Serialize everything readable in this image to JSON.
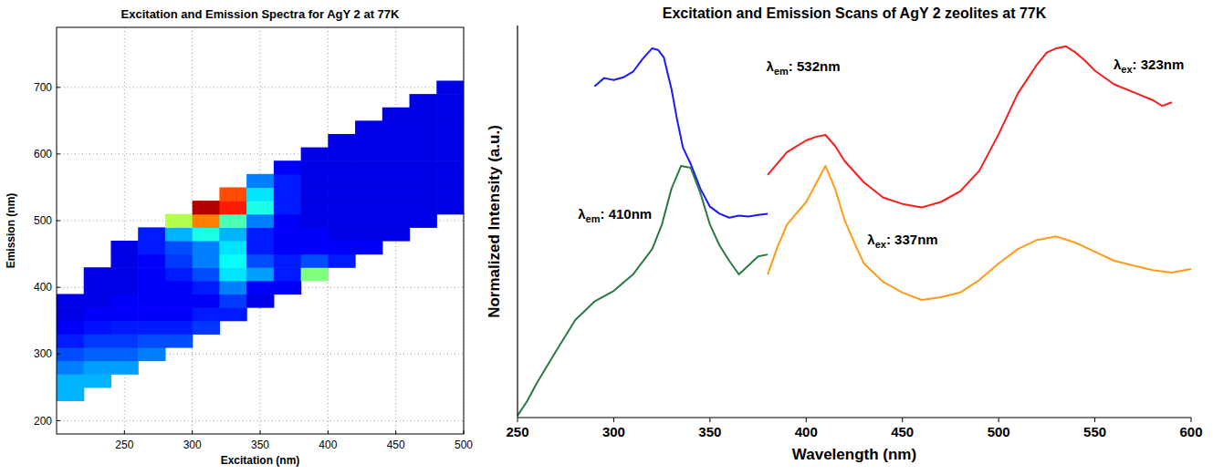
{
  "chart_data": [
    {
      "type": "heatmap",
      "title": "Excitation and Emission Spectra for AgY 2 at 77K",
      "x_label": "Excitation (nm)",
      "y_label": "Emission (nm)",
      "x": [
        210,
        230,
        250,
        270,
        290,
        310,
        330,
        350,
        370,
        390,
        410,
        430,
        450,
        470,
        490
      ],
      "y": [
        240,
        260,
        280,
        300,
        320,
        340,
        360,
        380,
        400,
        420,
        440,
        460,
        480,
        500,
        520,
        540,
        560,
        580,
        600,
        620,
        640,
        660,
        680,
        700
      ],
      "z": [
        [
          0.3,
          null,
          null,
          null,
          null,
          null,
          null,
          null,
          null,
          null,
          null,
          null,
          null,
          null,
          null
        ],
        [
          0.3,
          0.3,
          null,
          null,
          null,
          null,
          null,
          null,
          null,
          null,
          null,
          null,
          null,
          null,
          null
        ],
        [
          0.25,
          0.28,
          0.28,
          null,
          null,
          null,
          null,
          null,
          null,
          null,
          null,
          null,
          null,
          null,
          null
        ],
        [
          0.2,
          0.22,
          0.22,
          0.25,
          null,
          null,
          null,
          null,
          null,
          null,
          null,
          null,
          null,
          null,
          null
        ],
        [
          0.15,
          0.18,
          0.18,
          0.2,
          0.2,
          null,
          null,
          null,
          null,
          null,
          null,
          null,
          null,
          null,
          null
        ],
        [
          0.12,
          0.14,
          0.15,
          0.15,
          0.15,
          0.18,
          null,
          null,
          null,
          null,
          null,
          null,
          null,
          null,
          null
        ],
        [
          0.1,
          0.12,
          0.12,
          0.12,
          0.12,
          0.15,
          0.15,
          null,
          null,
          null,
          null,
          null,
          null,
          null,
          null
        ],
        [
          0.1,
          0.1,
          0.12,
          0.12,
          0.12,
          0.12,
          0.18,
          0.1,
          null,
          null,
          null,
          null,
          null,
          null,
          null
        ],
        [
          null,
          0.1,
          0.1,
          0.12,
          0.12,
          0.15,
          0.25,
          0.12,
          0.12,
          null,
          null,
          null,
          null,
          null,
          null
        ],
        [
          null,
          0.1,
          0.1,
          0.12,
          0.15,
          0.2,
          0.35,
          0.28,
          0.15,
          0.5,
          null,
          null,
          null,
          null,
          null
        ],
        [
          null,
          null,
          0.1,
          0.12,
          0.18,
          0.25,
          0.38,
          0.2,
          0.15,
          0.2,
          0.15,
          null,
          null,
          null,
          null
        ],
        [
          null,
          null,
          0.1,
          0.15,
          0.2,
          0.25,
          0.35,
          0.15,
          0.12,
          0.12,
          0.12,
          0.12,
          null,
          null,
          null
        ],
        [
          null,
          null,
          null,
          0.15,
          0.3,
          0.4,
          0.3,
          0.15,
          0.12,
          0.12,
          0.1,
          0.1,
          0.1,
          null,
          null
        ],
        [
          null,
          null,
          null,
          null,
          0.55,
          0.75,
          0.45,
          0.25,
          0.12,
          0.1,
          0.1,
          0.1,
          0.1,
          0.1,
          null
        ],
        [
          null,
          null,
          null,
          null,
          null,
          0.95,
          0.85,
          0.4,
          0.15,
          0.1,
          0.1,
          0.1,
          0.1,
          0.1,
          0.1
        ],
        [
          null,
          null,
          null,
          null,
          null,
          null,
          0.8,
          0.35,
          0.15,
          0.1,
          0.1,
          0.1,
          0.1,
          0.1,
          0.1
        ],
        [
          null,
          null,
          null,
          null,
          null,
          null,
          null,
          0.25,
          0.15,
          0.1,
          0.1,
          0.1,
          0.1,
          0.1,
          0.1
        ],
        [
          null,
          null,
          null,
          null,
          null,
          null,
          null,
          null,
          0.12,
          0.1,
          0.1,
          0.1,
          0.1,
          0.1,
          0.1
        ],
        [
          null,
          null,
          null,
          null,
          null,
          null,
          null,
          null,
          null,
          0.1,
          0.1,
          0.1,
          0.1,
          0.1,
          0.1
        ],
        [
          null,
          null,
          null,
          null,
          null,
          null,
          null,
          null,
          null,
          null,
          0.1,
          0.1,
          0.1,
          0.1,
          0.1
        ],
        [
          null,
          null,
          null,
          null,
          null,
          null,
          null,
          null,
          null,
          null,
          null,
          0.1,
          0.1,
          0.1,
          0.1
        ],
        [
          null,
          null,
          null,
          null,
          null,
          null,
          null,
          null,
          null,
          null,
          null,
          null,
          0.1,
          0.1,
          0.1
        ],
        [
          null,
          null,
          null,
          null,
          null,
          null,
          null,
          null,
          null,
          null,
          null,
          null,
          null,
          0.1,
          0.1
        ],
        [
          null,
          null,
          null,
          null,
          null,
          null,
          null,
          null,
          null,
          null,
          null,
          null,
          null,
          null,
          0.1
        ]
      ],
      "zlim": [
        0,
        1
      ],
      "xlim": [
        200,
        500
      ],
      "ylim": [
        180,
        790
      ],
      "xticks": [
        250,
        300,
        350,
        400,
        450,
        500
      ],
      "yticks": [
        200,
        300,
        400,
        500,
        600,
        700
      ],
      "grid": true
    },
    {
      "type": "line",
      "title": "Excitation and Emission Scans of AgY 2 zeolites at 77K",
      "x_label": "Wavelength (nm)",
      "y_label": "Normalized Intensity (a.u.)",
      "xlim": [
        250,
        600
      ],
      "ylim": [
        0,
        10
      ],
      "xticks": [
        250,
        300,
        350,
        400,
        450,
        500,
        550,
        600
      ],
      "tick_labels": "x",
      "grid": false,
      "series": [
        {
          "name": "λem: 532nm",
          "color": "#1a1aff",
          "x": [
            290,
            295,
            300,
            305,
            310,
            315,
            320,
            323,
            326,
            330,
            333,
            336,
            340,
            345,
            350,
            355,
            360,
            365,
            370,
            375,
            380
          ],
          "values": [
            8.45,
            8.66,
            8.61,
            8.68,
            8.82,
            9.15,
            9.42,
            9.38,
            9.19,
            8.38,
            7.58,
            6.88,
            6.47,
            5.84,
            5.38,
            5.2,
            5.1,
            5.15,
            5.13,
            5.17,
            5.2
          ]
        },
        {
          "name": "λex: 323nm",
          "color": "#ff1a1a",
          "x": [
            380,
            390,
            400,
            405,
            410,
            415,
            420,
            430,
            440,
            450,
            460,
            470,
            480,
            490,
            500,
            510,
            520,
            525,
            530,
            535,
            540,
            545,
            550,
            560,
            570,
            580,
            585,
            590
          ],
          "values": [
            6.19,
            6.77,
            7.07,
            7.16,
            7.21,
            6.93,
            6.54,
            6.0,
            5.61,
            5.45,
            5.36,
            5.5,
            5.77,
            6.3,
            7.23,
            8.27,
            9.01,
            9.31,
            9.42,
            9.47,
            9.31,
            9.1,
            8.85,
            8.5,
            8.3,
            8.1,
            7.95,
            8.04
          ]
        },
        {
          "name": "λem: 410nm",
          "color": "#2a7a45",
          "x": [
            250,
            255,
            260,
            270,
            280,
            290,
            300,
            310,
            320,
            325,
            330,
            335,
            340,
            345,
            350,
            355,
            360,
            365,
            370,
            375,
            380
          ],
          "values": [
            0.05,
            0.42,
            0.88,
            1.69,
            2.49,
            2.96,
            3.23,
            3.65,
            4.3,
            4.92,
            5.84,
            6.42,
            6.37,
            5.73,
            4.92,
            4.39,
            4.0,
            3.65,
            3.88,
            4.11,
            4.16
          ]
        },
        {
          "name": "λex: 337nm",
          "color": "#ff9a1a",
          "x": [
            380,
            385,
            390,
            400,
            405,
            410,
            415,
            420,
            425,
            430,
            440,
            450,
            460,
            470,
            480,
            490,
            500,
            510,
            520,
            530,
            540,
            550,
            560,
            570,
            580,
            590,
            600
          ],
          "values": [
            3.65,
            4.34,
            4.92,
            5.5,
            5.96,
            6.42,
            5.84,
            5.03,
            4.46,
            3.93,
            3.46,
            3.19,
            3.0,
            3.07,
            3.19,
            3.51,
            3.93,
            4.3,
            4.53,
            4.62,
            4.46,
            4.23,
            4.0,
            3.88,
            3.76,
            3.7,
            3.79
          ]
        }
      ]
    }
  ]
}
